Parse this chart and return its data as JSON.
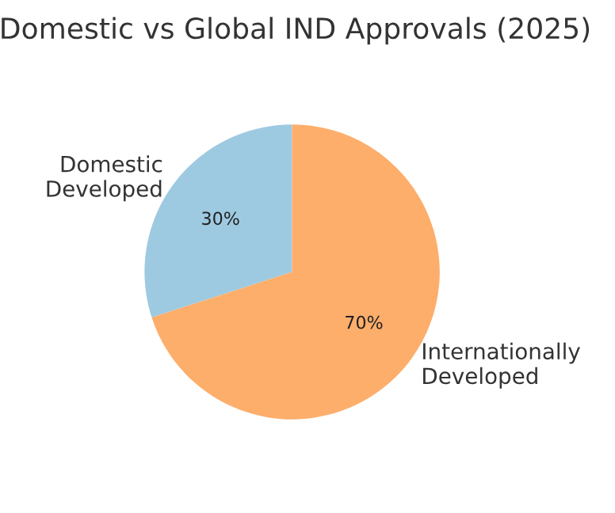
{
  "chart_data": {
    "type": "pie",
    "title": "Domestic vs Global IND Approvals (2025)",
    "categories": [
      "Domestic\nDeveloped",
      "Internationally\nDeveloped"
    ],
    "values": [
      30,
      70
    ],
    "value_labels": [
      "30%",
      "70%"
    ],
    "colors": [
      "#9ecae1",
      "#fdae6b"
    ]
  }
}
